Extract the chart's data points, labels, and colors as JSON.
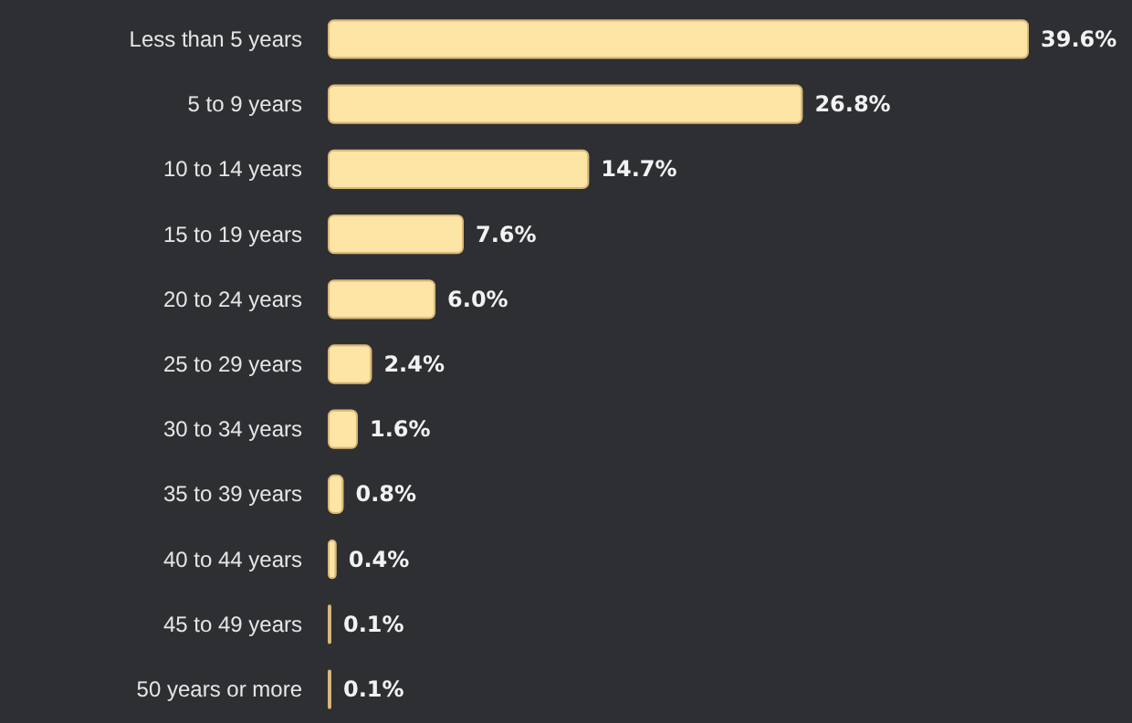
{
  "chart_data": {
    "type": "bar",
    "orientation": "horizontal",
    "categories": [
      "Less than 5 years",
      "5 to 9 years",
      "10 to 14 years",
      "15 to 19 years",
      "20 to 24 years",
      "25 to 29 years",
      "30 to 34 years",
      "35 to 39 years",
      "40 to 44 years",
      "45 to 49 years",
      "50 years or more"
    ],
    "values": [
      39.6,
      26.8,
      14.7,
      7.6,
      6.0,
      2.4,
      1.6,
      0.8,
      0.4,
      0.1,
      0.1
    ],
    "value_labels": [
      "39.6%",
      "26.8%",
      "14.7%",
      "7.6%",
      "6.0%",
      "2.4%",
      "1.6%",
      "0.8%",
      "0.4%",
      "0.1%",
      "0.1%"
    ],
    "color": "#fde5a6"
  }
}
